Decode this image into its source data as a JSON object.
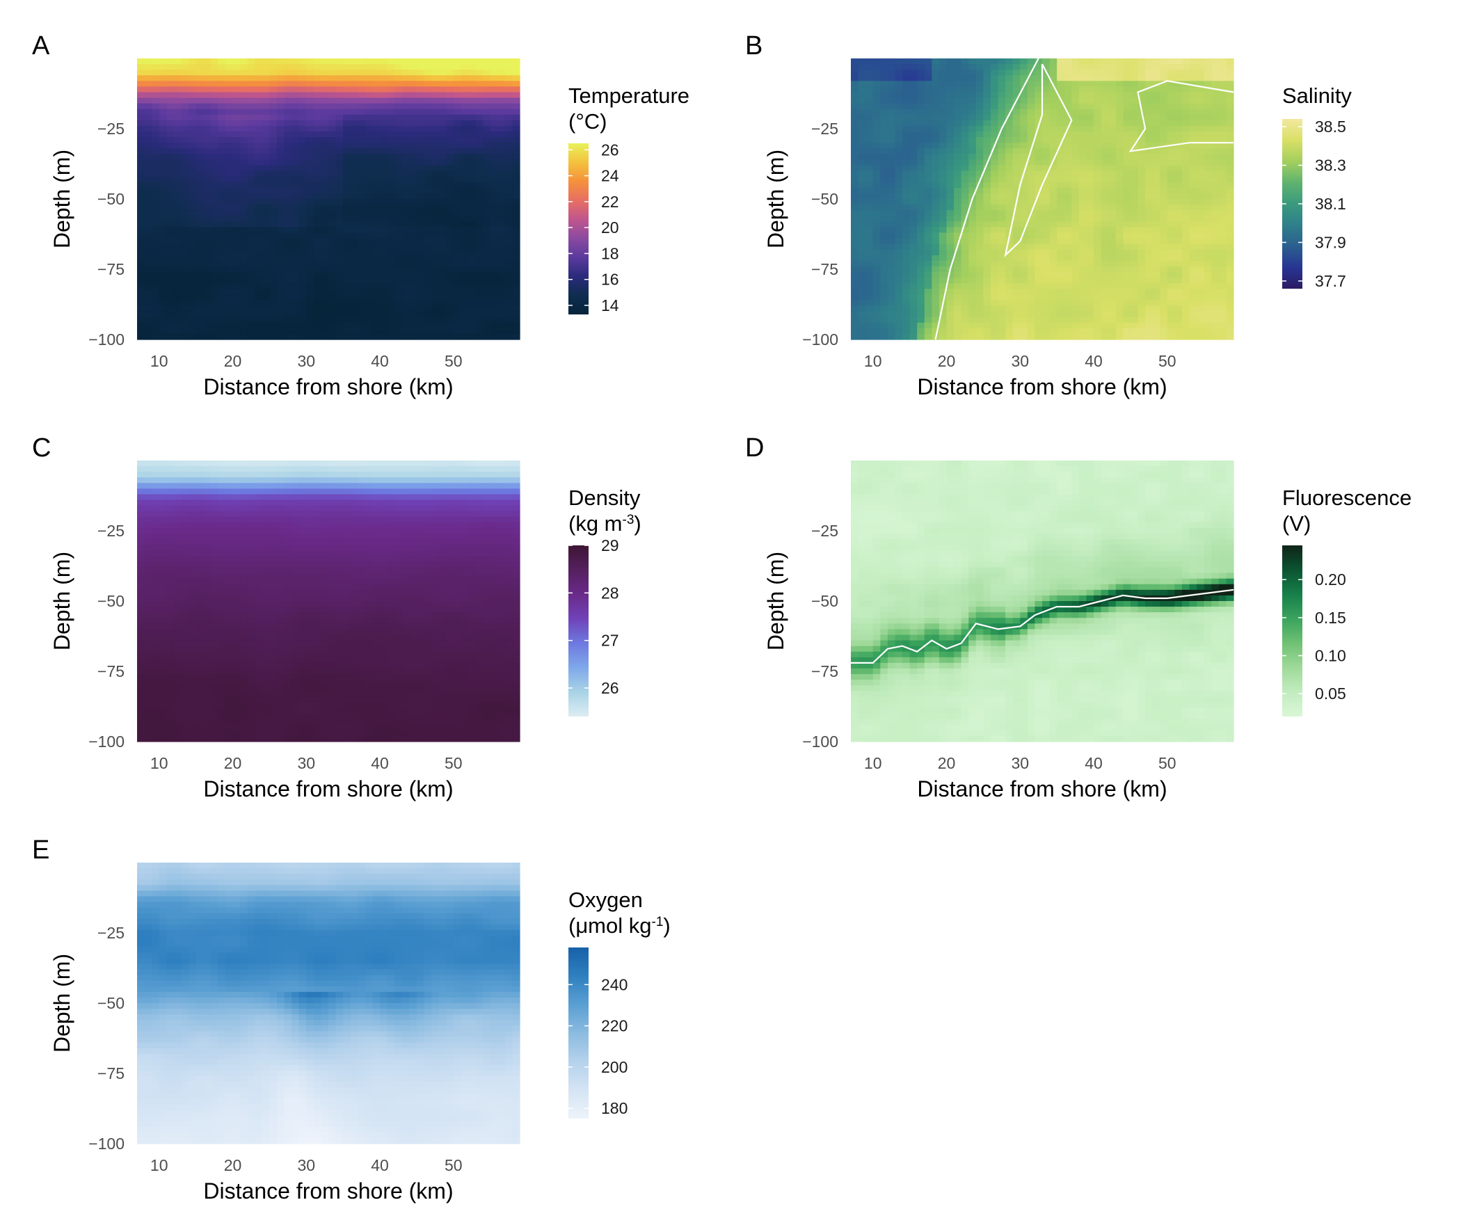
{
  "figure": {
    "xlabel": "Distance from shore (km)",
    "ylabel": "Depth (m)"
  },
  "chart_data": [
    {
      "letter": "A",
      "type": "heatmap",
      "variable": "temperature",
      "legend": {
        "title_line1": "Temperature",
        "title_line2": "(°C)",
        "ticks": [
          "26",
          "24",
          "22",
          "20",
          "18",
          "16",
          "14"
        ],
        "tick_values": [
          26,
          24,
          22,
          20,
          18,
          16,
          14
        ],
        "range": [
          13.3,
          26.5
        ]
      },
      "colors": [
        "#06243a",
        "#0f2d4f",
        "#2b2b7c",
        "#5b3a9e",
        "#8a4aa0",
        "#c0568c",
        "#e86f62",
        "#f5913c",
        "#f4c23e",
        "#e8f25a"
      ],
      "xlim": [
        7,
        59
      ],
      "ylim": [
        -100,
        0
      ],
      "x_ticks": [
        10,
        20,
        30,
        40,
        50
      ],
      "y_ticks": [
        -25,
        -50,
        -75,
        -100
      ],
      "profile": [
        {
          "depth": 0,
          "value": 26.2
        },
        {
          "depth": -5,
          "value": 25.5
        },
        {
          "depth": -9,
          "value": 23
        },
        {
          "depth": -13,
          "value": 20
        },
        {
          "depth": -18,
          "value": 17.8
        },
        {
          "depth": -25,
          "value": 16.5
        },
        {
          "depth": -35,
          "value": 15.4
        },
        {
          "depth": -45,
          "value": 14.6
        },
        {
          "depth": -60,
          "value": 14.1
        },
        {
          "depth": -80,
          "value": 13.8
        },
        {
          "depth": -100,
          "value": 13.6
        }
      ]
    },
    {
      "letter": "B",
      "type": "heatmap",
      "variable": "salinity",
      "legend": {
        "title_line1": "Salinity",
        "title_line2": "",
        "ticks": [
          "38.5",
          "38.3",
          "38.1",
          "37.9",
          "37.7"
        ],
        "tick_values": [
          38.5,
          38.3,
          38.1,
          37.9,
          37.7
        ],
        "range": [
          37.66,
          38.54
        ]
      },
      "colors": [
        "#2a1a63",
        "#283593",
        "#2a5f8f",
        "#2f7f8a",
        "#3a9a7e",
        "#5fb36e",
        "#a3cf5e",
        "#d9e066",
        "#f2e8a0"
      ],
      "xlim": [
        7,
        59
      ],
      "ylim": [
        -100,
        0
      ],
      "x_ticks": [
        10,
        20,
        30,
        40,
        50
      ],
      "y_ticks": [
        -25,
        -50,
        -75,
        -100
      ],
      "front_km": [
        {
          "depth": 0,
          "km": 30
        },
        {
          "depth": -25,
          "km": 25
        },
        {
          "depth": -50,
          "km": 21
        },
        {
          "depth": -75,
          "km": 18
        },
        {
          "depth": -100,
          "km": 16
        }
      ],
      "contour_level": 38.2
    },
    {
      "letter": "C",
      "type": "heatmap",
      "variable": "density",
      "legend": {
        "title_line1": "Density",
        "title_line2": "(kg m",
        "title_sup": "-3",
        "title_close": ")",
        "ticks": [
          "29",
          "28",
          "27",
          "26"
        ],
        "tick_values": [
          29,
          28,
          27,
          26
        ],
        "range": [
          25.4,
          29.0
        ]
      },
      "colors": [
        "#dcedf2",
        "#a9d3e6",
        "#7fa8ea",
        "#6d79e0",
        "#7043b8",
        "#6a2a8a",
        "#55205f",
        "#3d1534"
      ],
      "xlim": [
        7,
        59
      ],
      "ylim": [
        -100,
        0
      ],
      "x_ticks": [
        10,
        20,
        30,
        40,
        50
      ],
      "y_ticks": [
        -25,
        -50,
        -75,
        -100
      ],
      "profile": [
        {
          "depth": 0,
          "value": 25.5
        },
        {
          "depth": -6,
          "value": 25.9
        },
        {
          "depth": -10,
          "value": 26.8
        },
        {
          "depth": -14,
          "value": 27.5
        },
        {
          "depth": -22,
          "value": 27.9
        },
        {
          "depth": -40,
          "value": 28.3
        },
        {
          "depth": -60,
          "value": 28.6
        },
        {
          "depth": -80,
          "value": 28.8
        },
        {
          "depth": -100,
          "value": 28.85
        }
      ]
    },
    {
      "letter": "D",
      "type": "heatmap",
      "variable": "fluorescence",
      "legend": {
        "title_line1": "Fluorescence",
        "title_line2": "(V)",
        "ticks": [
          "0.20",
          "0.15",
          "0.10",
          "0.05"
        ],
        "tick_values": [
          0.2,
          0.15,
          0.1,
          0.05
        ],
        "range": [
          0.02,
          0.245
        ]
      },
      "colors": [
        "#d9f7d6",
        "#c2ecbe",
        "#9fd99a",
        "#6fc174",
        "#3aa35d",
        "#17804a",
        "#0b5431",
        "#0f2417"
      ],
      "xlim": [
        7,
        59
      ],
      "ylim": [
        -100,
        0
      ],
      "x_ticks": [
        10,
        20,
        30,
        40,
        50
      ],
      "y_ticks": [
        -25,
        -50,
        -75,
        -100
      ],
      "dcm_line": [
        {
          "km": 7,
          "depth": -72
        },
        {
          "km": 10,
          "depth": -72
        },
        {
          "km": 12,
          "depth": -67
        },
        {
          "km": 14,
          "depth": -66
        },
        {
          "km": 16,
          "depth": -68
        },
        {
          "km": 18,
          "depth": -64
        },
        {
          "km": 20,
          "depth": -67
        },
        {
          "km": 22,
          "depth": -65
        },
        {
          "km": 24,
          "depth": -58
        },
        {
          "km": 27,
          "depth": -60
        },
        {
          "km": 30,
          "depth": -59
        },
        {
          "km": 32,
          "depth": -55
        },
        {
          "km": 35,
          "depth": -52
        },
        {
          "km": 38,
          "depth": -52
        },
        {
          "km": 41,
          "depth": -50
        },
        {
          "km": 44,
          "depth": -48
        },
        {
          "km": 47,
          "depth": -49
        },
        {
          "km": 50,
          "depth": -49
        },
        {
          "km": 53,
          "depth": -48
        },
        {
          "km": 56,
          "depth": -47
        },
        {
          "km": 59,
          "depth": -46
        }
      ]
    },
    {
      "letter": "E",
      "type": "heatmap",
      "variable": "oxygen",
      "legend": {
        "title_line1": "Oxygen",
        "title_line2": "(μmol kg",
        "title_sup": "-1",
        "title_close": ")",
        "ticks": [
          "240",
          "220",
          "200",
          "180"
        ],
        "tick_values": [
          240,
          220,
          200,
          180
        ],
        "range": [
          175,
          258
        ]
      },
      "colors": [
        "#eef3fb",
        "#d4e4f4",
        "#b5d2ec",
        "#8bbbe0",
        "#5a9fd2",
        "#2f80c0",
        "#1760a8"
      ],
      "xlim": [
        7,
        59
      ],
      "ylim": [
        -100,
        0
      ],
      "x_ticks": [
        10,
        20,
        30,
        40,
        50
      ],
      "y_ticks": [
        -25,
        -50,
        -75,
        -100
      ],
      "profile": [
        {
          "depth": 0,
          "value": 202
        },
        {
          "depth": -7,
          "value": 210
        },
        {
          "depth": -14,
          "value": 230
        },
        {
          "depth": -25,
          "value": 242
        },
        {
          "depth": -35,
          "value": 243
        },
        {
          "depth": -45,
          "value": 232
        },
        {
          "depth": -55,
          "value": 212
        },
        {
          "depth": -70,
          "value": 196
        },
        {
          "depth": -85,
          "value": 188
        },
        {
          "depth": -100,
          "value": 184
        }
      ]
    }
  ]
}
